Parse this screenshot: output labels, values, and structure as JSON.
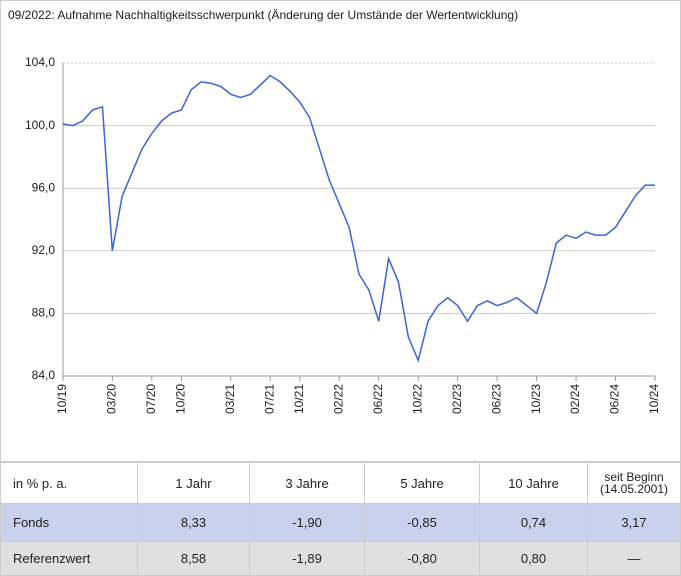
{
  "chart_data": {
    "type": "line",
    "title": "09/2022: Aufnahme Nachhaltigkeitsschwerpunkt (Änderung der Umstände der Wertentwicklung)",
    "categories": [
      "10/19",
      null,
      null,
      null,
      null,
      "03/20",
      null,
      null,
      null,
      "07/20",
      null,
      null,
      "10/20",
      null,
      null,
      null,
      null,
      "03/21",
      null,
      null,
      null,
      "07/21",
      null,
      null,
      "10/21",
      null,
      null,
      null,
      "02/22",
      null,
      null,
      null,
      "06/22",
      null,
      null,
      null,
      "10/22",
      null,
      null,
      null,
      "02/23",
      null,
      null,
      null,
      "06/23",
      null,
      null,
      null,
      "10/23",
      null,
      null,
      null,
      "02/24",
      null,
      null,
      null,
      "06/24",
      null,
      null,
      null,
      "10/24"
    ],
    "series": [
      {
        "color": "#3a66d6",
        "values": [
          100.1,
          100.0,
          100.3,
          101.0,
          101.2,
          92.0,
          95.5,
          97.0,
          98.5,
          99.5,
          100.3,
          100.8,
          101.0,
          102.3,
          102.8,
          102.7,
          102.5,
          102.0,
          101.8,
          102.0,
          102.6,
          103.2,
          102.8,
          102.2,
          101.5,
          100.5,
          98.5,
          96.5,
          95.0,
          93.5,
          90.5,
          89.5,
          87.5,
          91.5,
          90.0,
          86.5,
          85.0,
          87.5,
          88.5,
          89.0,
          88.5,
          87.5,
          88.5,
          88.8,
          88.5,
          88.7,
          89.0,
          88.5,
          88.0,
          90.0,
          92.5,
          93.0,
          92.8,
          93.2,
          93.0,
          93.0,
          93.5,
          94.5,
          95.5,
          96.2,
          96.2
        ]
      }
    ],
    "ylim": [
      84,
      104
    ],
    "yticks": [
      {
        "value": 84,
        "label": "84,0"
      },
      {
        "value": 88,
        "label": "88,0"
      },
      {
        "value": 92,
        "label": "92,0"
      },
      {
        "value": 96,
        "label": "96,0"
      },
      {
        "value": 100,
        "label": "100,0"
      },
      {
        "value": 104,
        "label": "104,0"
      }
    ],
    "grid": true
  },
  "table": {
    "header": [
      "in % p. a.",
      "1 Jahr",
      "3 Jahre",
      "5 Jahre",
      "10 Jahre",
      "seit Beginn (14.05.2001)"
    ],
    "rows": [
      [
        "Fonds",
        "8,33",
        "-1,90",
        "-0,85",
        "0,74",
        "3,17"
      ],
      [
        "Referenzwert",
        "8,58",
        "-1,89",
        "-0,80",
        "0,80",
        "—"
      ]
    ]
  }
}
